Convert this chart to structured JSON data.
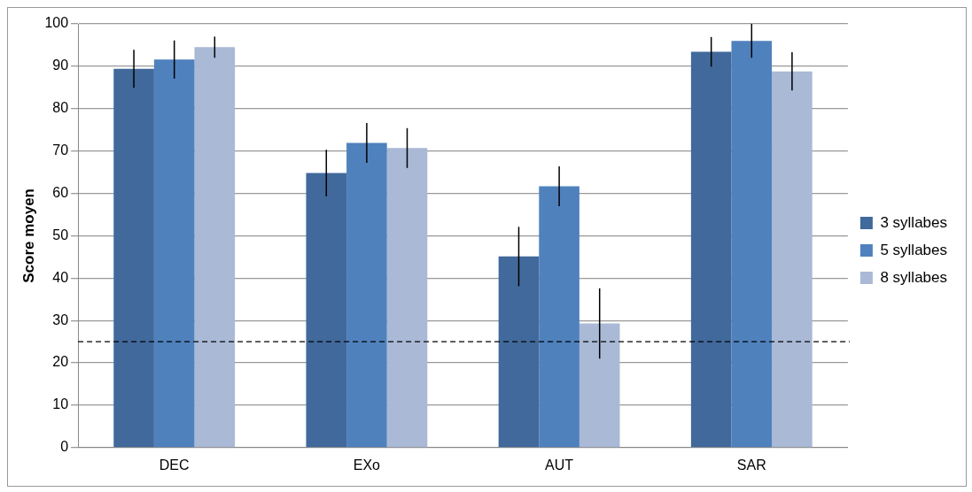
{
  "chart_data": {
    "type": "bar",
    "ylabel": "Score moyen",
    "categories": [
      "DEC",
      "EXo",
      "AUT",
      "SAR"
    ],
    "series": [
      {
        "name": "3 syllabes",
        "color": "#41699b",
        "values": [
          89.4,
          64.8,
          45.1,
          93.4
        ],
        "errors": [
          4.5,
          5.5,
          7,
          3.5
        ]
      },
      {
        "name": "5 syllabes",
        "color": "#4f81bd",
        "values": [
          91.6,
          71.9,
          61.7,
          96
        ],
        "errors": [
          4.5,
          4.7,
          4.7,
          4
        ]
      },
      {
        "name": "8 syllabes",
        "color": "#a9b9d6",
        "values": [
          94.5,
          70.7,
          29.3,
          88.8
        ],
        "errors": [
          2.5,
          4.7,
          8.3,
          4.5
        ]
      }
    ],
    "ylim": [
      0,
      100
    ],
    "yticks": [
      0,
      10,
      20,
      30,
      40,
      50,
      60,
      70,
      80,
      90,
      100
    ],
    "grid": "y",
    "legend": "right",
    "ref_lines": [
      {
        "axis": "y",
        "value": 25,
        "line_style": "dashed",
        "color": "#000000"
      }
    ]
  }
}
